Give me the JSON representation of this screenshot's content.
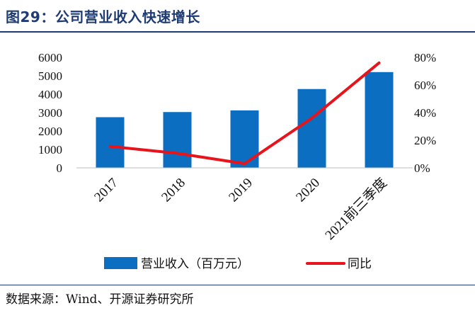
{
  "title": "图29：公司营业收入快速增长",
  "source": "数据来源：Wind、开源证券研究所",
  "colors": {
    "bar": "#0b6ec0",
    "line": "#e8141c",
    "title": "#1f3b73"
  },
  "chart_data": {
    "type": "bar",
    "categories": [
      "2017",
      "2018",
      "2019",
      "2020",
      "2021前三季度"
    ],
    "series": [
      {
        "name": "营业收入（百万元）",
        "type": "bar",
        "axis": "left",
        "values": [
          2750,
          3030,
          3120,
          4280,
          5200
        ]
      },
      {
        "name": "同比",
        "type": "line",
        "axis": "right",
        "values": [
          0.155,
          0.105,
          0.03,
          0.36,
          0.76
        ]
      }
    ],
    "left_axis": {
      "ylim": [
        0,
        6000
      ],
      "ticks": [
        "0",
        "1000",
        "2000",
        "3000",
        "4000",
        "5000",
        "6000"
      ]
    },
    "right_axis": {
      "ylim": [
        0,
        0.8
      ],
      "ticks": [
        "0%",
        "20%",
        "40%",
        "60%",
        "80%"
      ]
    },
    "grid": false,
    "legend": "bottom"
  }
}
